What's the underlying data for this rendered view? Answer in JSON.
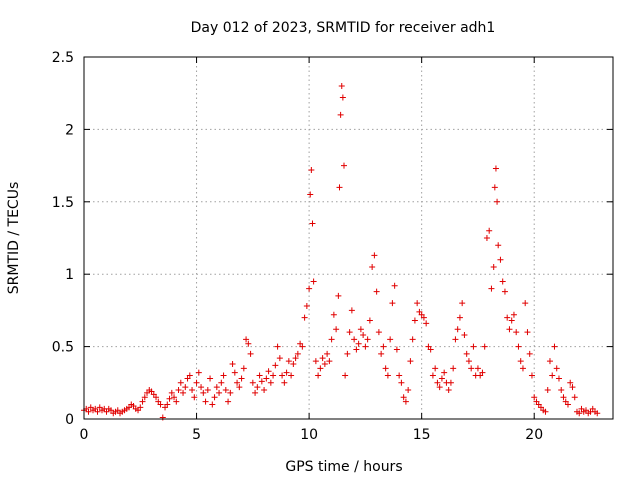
{
  "chart_data": {
    "type": "scatter",
    "title": "Day 012 of 2023, SRMTID for receiver adh1",
    "xlabel": "GPS time / hours",
    "ylabel": "SRMTID / TECUs",
    "xlim": [
      0,
      23.5
    ],
    "ylim": [
      0,
      2.5
    ],
    "xticks": [
      0,
      5,
      10,
      15,
      20
    ],
    "xtick_labels": [
      "0",
      "5",
      "10",
      "15",
      "20"
    ],
    "yticks": [
      0,
      0.5,
      1,
      1.5,
      2,
      2.5
    ],
    "ytick_labels": [
      "0",
      "0.5",
      "1",
      "1.5",
      "2",
      "2.5"
    ],
    "grid": true,
    "marker": "+",
    "series": [
      {
        "name": "adh1",
        "color": "#e00000",
        "points": [
          [
            0.0,
            0.06
          ],
          [
            0.1,
            0.07
          ],
          [
            0.2,
            0.05
          ],
          [
            0.3,
            0.08
          ],
          [
            0.4,
            0.06
          ],
          [
            0.5,
            0.07
          ],
          [
            0.6,
            0.05
          ],
          [
            0.7,
            0.08
          ],
          [
            0.8,
            0.06
          ],
          [
            0.9,
            0.07
          ],
          [
            1.0,
            0.05
          ],
          [
            1.1,
            0.07
          ],
          [
            1.2,
            0.06
          ],
          [
            1.3,
            0.04
          ],
          [
            1.4,
            0.05
          ],
          [
            1.5,
            0.06
          ],
          [
            1.6,
            0.04
          ],
          [
            1.7,
            0.05
          ],
          [
            1.8,
            0.06
          ],
          [
            1.9,
            0.07
          ],
          [
            2.0,
            0.08
          ],
          [
            2.1,
            0.1
          ],
          [
            2.2,
            0.09
          ],
          [
            2.3,
            0.07
          ],
          [
            2.4,
            0.06
          ],
          [
            2.5,
            0.08
          ],
          [
            2.6,
            0.12
          ],
          [
            2.7,
            0.15
          ],
          [
            2.8,
            0.18
          ],
          [
            2.9,
            0.2
          ],
          [
            3.0,
            0.19
          ],
          [
            3.1,
            0.17
          ],
          [
            3.2,
            0.15
          ],
          [
            3.3,
            0.12
          ],
          [
            3.4,
            0.1
          ],
          [
            3.5,
            0.01
          ],
          [
            3.6,
            0.08
          ],
          [
            3.7,
            0.1
          ],
          [
            3.8,
            0.14
          ],
          [
            3.9,
            0.18
          ],
          [
            4.0,
            0.15
          ],
          [
            4.1,
            0.12
          ],
          [
            4.2,
            0.2
          ],
          [
            4.3,
            0.25
          ],
          [
            4.4,
            0.18
          ],
          [
            4.5,
            0.22
          ],
          [
            4.6,
            0.28
          ],
          [
            4.7,
            0.3
          ],
          [
            4.8,
            0.2
          ],
          [
            4.9,
            0.15
          ],
          [
            5.0,
            0.25
          ],
          [
            5.1,
            0.32
          ],
          [
            5.2,
            0.22
          ],
          [
            5.3,
            0.18
          ],
          [
            5.4,
            0.12
          ],
          [
            5.5,
            0.2
          ],
          [
            5.6,
            0.28
          ],
          [
            5.7,
            0.1
          ],
          [
            5.8,
            0.15
          ],
          [
            5.9,
            0.22
          ],
          [
            6.0,
            0.18
          ],
          [
            6.1,
            0.25
          ],
          [
            6.2,
            0.3
          ],
          [
            6.3,
            0.2
          ],
          [
            6.4,
            0.12
          ],
          [
            6.5,
            0.18
          ],
          [
            6.6,
            0.38
          ],
          [
            6.7,
            0.32
          ],
          [
            6.8,
            0.25
          ],
          [
            6.9,
            0.22
          ],
          [
            7.0,
            0.28
          ],
          [
            7.1,
            0.35
          ],
          [
            7.2,
            0.55
          ],
          [
            7.3,
            0.52
          ],
          [
            7.4,
            0.45
          ],
          [
            7.5,
            0.25
          ],
          [
            7.6,
            0.18
          ],
          [
            7.7,
            0.22
          ],
          [
            7.8,
            0.3
          ],
          [
            7.9,
            0.26
          ],
          [
            8.0,
            0.2
          ],
          [
            8.1,
            0.28
          ],
          [
            8.2,
            0.33
          ],
          [
            8.3,
            0.25
          ],
          [
            8.4,
            0.3
          ],
          [
            8.5,
            0.37
          ],
          [
            8.6,
            0.5
          ],
          [
            8.7,
            0.42
          ],
          [
            8.8,
            0.3
          ],
          [
            8.9,
            0.25
          ],
          [
            9.0,
            0.32
          ],
          [
            9.1,
            0.4
          ],
          [
            9.2,
            0.3
          ],
          [
            9.3,
            0.38
          ],
          [
            9.4,
            0.42
          ],
          [
            9.5,
            0.45
          ],
          [
            9.6,
            0.52
          ],
          [
            9.7,
            0.5
          ],
          [
            9.8,
            0.7
          ],
          [
            9.9,
            0.78
          ],
          [
            10.0,
            0.9
          ],
          [
            10.05,
            1.55
          ],
          [
            10.1,
            1.72
          ],
          [
            10.15,
            1.35
          ],
          [
            10.2,
            0.95
          ],
          [
            10.3,
            0.4
          ],
          [
            10.4,
            0.3
          ],
          [
            10.5,
            0.35
          ],
          [
            10.6,
            0.42
          ],
          [
            10.7,
            0.38
          ],
          [
            10.8,
            0.45
          ],
          [
            10.9,
            0.4
          ],
          [
            11.0,
            0.55
          ],
          [
            11.1,
            0.72
          ],
          [
            11.2,
            0.62
          ],
          [
            11.3,
            0.85
          ],
          [
            11.35,
            1.6
          ],
          [
            11.4,
            2.1
          ],
          [
            11.45,
            2.3
          ],
          [
            11.5,
            2.22
          ],
          [
            11.55,
            1.75
          ],
          [
            11.6,
            0.3
          ],
          [
            11.7,
            0.45
          ],
          [
            11.8,
            0.6
          ],
          [
            11.9,
            0.75
          ],
          [
            12.0,
            0.55
          ],
          [
            12.1,
            0.48
          ],
          [
            12.2,
            0.52
          ],
          [
            12.3,
            0.62
          ],
          [
            12.4,
            0.58
          ],
          [
            12.5,
            0.5
          ],
          [
            12.6,
            0.55
          ],
          [
            12.7,
            0.68
          ],
          [
            12.8,
            1.05
          ],
          [
            12.9,
            1.13
          ],
          [
            13.0,
            0.88
          ],
          [
            13.1,
            0.6
          ],
          [
            13.2,
            0.45
          ],
          [
            13.3,
            0.5
          ],
          [
            13.4,
            0.35
          ],
          [
            13.5,
            0.3
          ],
          [
            13.6,
            0.55
          ],
          [
            13.7,
            0.8
          ],
          [
            13.8,
            0.92
          ],
          [
            13.9,
            0.48
          ],
          [
            14.0,
            0.3
          ],
          [
            14.1,
            0.25
          ],
          [
            14.2,
            0.15
          ],
          [
            14.3,
            0.12
          ],
          [
            14.4,
            0.2
          ],
          [
            14.5,
            0.4
          ],
          [
            14.6,
            0.55
          ],
          [
            14.7,
            0.68
          ],
          [
            14.8,
            0.8
          ],
          [
            14.9,
            0.74
          ],
          [
            15.0,
            0.72
          ],
          [
            15.1,
            0.7
          ],
          [
            15.2,
            0.66
          ],
          [
            15.3,
            0.5
          ],
          [
            15.4,
            0.48
          ],
          [
            15.5,
            0.3
          ],
          [
            15.6,
            0.35
          ],
          [
            15.7,
            0.25
          ],
          [
            15.8,
            0.22
          ],
          [
            15.9,
            0.28
          ],
          [
            16.0,
            0.32
          ],
          [
            16.1,
            0.25
          ],
          [
            16.2,
            0.2
          ],
          [
            16.3,
            0.25
          ],
          [
            16.4,
            0.35
          ],
          [
            16.5,
            0.55
          ],
          [
            16.6,
            0.62
          ],
          [
            16.7,
            0.7
          ],
          [
            16.8,
            0.8
          ],
          [
            16.9,
            0.58
          ],
          [
            17.0,
            0.45
          ],
          [
            17.1,
            0.4
          ],
          [
            17.2,
            0.35
          ],
          [
            17.3,
            0.5
          ],
          [
            17.4,
            0.3
          ],
          [
            17.5,
            0.35
          ],
          [
            17.6,
            0.3
          ],
          [
            17.7,
            0.32
          ],
          [
            17.8,
            0.5
          ],
          [
            17.9,
            1.25
          ],
          [
            18.0,
            1.3
          ],
          [
            18.1,
            0.9
          ],
          [
            18.2,
            1.05
          ],
          [
            18.25,
            1.6
          ],
          [
            18.3,
            1.73
          ],
          [
            18.35,
            1.5
          ],
          [
            18.4,
            1.2
          ],
          [
            18.5,
            1.1
          ],
          [
            18.6,
            0.95
          ],
          [
            18.7,
            0.88
          ],
          [
            18.8,
            0.7
          ],
          [
            18.9,
            0.62
          ],
          [
            19.0,
            0.68
          ],
          [
            19.1,
            0.72
          ],
          [
            19.2,
            0.6
          ],
          [
            19.3,
            0.5
          ],
          [
            19.4,
            0.4
          ],
          [
            19.5,
            0.35
          ],
          [
            19.6,
            0.8
          ],
          [
            19.7,
            0.6
          ],
          [
            19.8,
            0.45
          ],
          [
            19.9,
            0.3
          ],
          [
            20.0,
            0.15
          ],
          [
            20.1,
            0.12
          ],
          [
            20.2,
            0.1
          ],
          [
            20.3,
            0.08
          ],
          [
            20.4,
            0.06
          ],
          [
            20.5,
            0.05
          ],
          [
            20.6,
            0.2
          ],
          [
            20.7,
            0.4
          ],
          [
            20.8,
            0.3
          ],
          [
            20.9,
            0.5
          ],
          [
            21.0,
            0.35
          ],
          [
            21.1,
            0.28
          ],
          [
            21.2,
            0.2
          ],
          [
            21.3,
            0.15
          ],
          [
            21.4,
            0.12
          ],
          [
            21.5,
            0.1
          ],
          [
            21.6,
            0.25
          ],
          [
            21.7,
            0.22
          ],
          [
            21.8,
            0.15
          ],
          [
            21.9,
            0.05
          ],
          [
            22.0,
            0.04
          ],
          [
            22.1,
            0.07
          ],
          [
            22.2,
            0.05
          ],
          [
            22.3,
            0.06
          ],
          [
            22.4,
            0.04
          ],
          [
            22.5,
            0.05
          ],
          [
            22.6,
            0.07
          ],
          [
            22.7,
            0.05
          ],
          [
            22.8,
            0.04
          ]
        ]
      }
    ]
  }
}
